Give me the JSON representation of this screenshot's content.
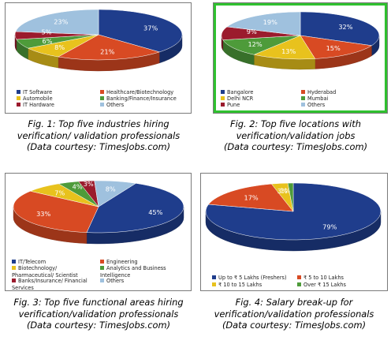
{
  "chart_data": [
    {
      "type": "pie",
      "title": "Fig. 1: Top five industries hiring verification/ validation professionals",
      "source": "(Data courtesy: TimesJobs.com)",
      "slices": [
        {
          "label": "IT Software",
          "value": 37,
          "text": "37%",
          "color": "#1f3d8c"
        },
        {
          "label": "Healthcare/Biotechnology",
          "value": 21,
          "text": "21%",
          "color": "#d84a23"
        },
        {
          "label": "Automobile",
          "value": 8,
          "text": "8%",
          "color": "#e8c21d"
        },
        {
          "label": "Banking/Finance/Insurance",
          "value": 6,
          "text": "6%",
          "color": "#4e9b3a"
        },
        {
          "label": "IT Hardware",
          "value": 5,
          "text": "5%",
          "color": "#9b1b2d"
        },
        {
          "label": "Others",
          "value": 23,
          "text": "23%",
          "color": "#9fc1de"
        }
      ]
    },
    {
      "type": "pie",
      "title": "Fig. 2: Top five locations with verification/validation jobs",
      "source": "(Data courtesy: TimesJobs.com)",
      "slices": [
        {
          "label": "Bangalore",
          "value": 32,
          "text": "32%",
          "color": "#1f3d8c"
        },
        {
          "label": "Hyderabad",
          "value": 15,
          "text": "15%",
          "color": "#d84a23"
        },
        {
          "label": "Delhi NCR",
          "value": 13,
          "text": "13%",
          "color": "#e8c21d"
        },
        {
          "label": "Mumbai",
          "value": 12,
          "text": "12%",
          "color": "#4e9b3a"
        },
        {
          "label": "Pune",
          "value": 9,
          "text": "9%",
          "color": "#9b1b2d"
        },
        {
          "label": "Others",
          "value": 19,
          "text": "19%",
          "color": "#9fc1de"
        }
      ]
    },
    {
      "type": "pie",
      "title": "Fig. 3: Top five functional areas hiring verification/validation professionals",
      "source": "(Data courtesy: TimesJobs.com)",
      "slices": [
        {
          "label": "IT/Telecom",
          "value": 45,
          "text": "45%",
          "color": "#1f3d8c"
        },
        {
          "label": "Engineering",
          "value": 33,
          "text": "33%",
          "color": "#d84a23"
        },
        {
          "label": "Biotechnology/ Pharmaceutical/ Scientist",
          "value": 7,
          "text": "7%",
          "color": "#e8c21d"
        },
        {
          "label": "Analytics and Business Intelligence",
          "value": 4,
          "text": "4%",
          "color": "#4e9b3a"
        },
        {
          "label": "Banks/Insurance/ Financial Services",
          "value": 3,
          "text": "3%",
          "color": "#9b1b2d"
        },
        {
          "label": "Others",
          "value": 8,
          "text": "8%",
          "color": "#9fc1de"
        }
      ]
    },
    {
      "type": "pie",
      "title": "Fig. 4: Salary break-up for verification/validation professionals",
      "source": "(Data courtesy: TimesJobs.com)",
      "slices": [
        {
          "label": "Up to ₹ 5 Lakhs (Freshers)",
          "value": 79,
          "text": "79%",
          "color": "#1f3d8c"
        },
        {
          "label": "₹ 5 to 10 Lakhs",
          "value": 17,
          "text": "17%",
          "color": "#d84a23"
        },
        {
          "label": "₹ 10 to 15 Lakhs",
          "value": 3,
          "text": "3%",
          "color": "#e8c21d"
        },
        {
          "label": "Over ₹ 15 Lakhs",
          "value": 1,
          "text": "1%",
          "color": "#4e9b3a"
        }
      ]
    }
  ],
  "captions": [
    {
      "line1": "Fig. 1: Top five industries hiring",
      "line2": "verification/ validation professionals",
      "line3": "(Data courtesy: TimesJobs.com)"
    },
    {
      "line1": "Fig. 2: Top five locations with",
      "line2": "verification/validation jobs",
      "line3": "(Data courtesy: TimesJobs.com)"
    },
    {
      "line1": "Fig. 3: Top five functional areas hiring",
      "line2": "verification/validation professionals",
      "line3": "(Data courtesy: TimesJobs.com)"
    },
    {
      "line1": "Fig. 4: Salary break-up for",
      "line2": "verification/validation professionals",
      "line3": "(Data courtesy: TimesJobs.com)"
    }
  ]
}
